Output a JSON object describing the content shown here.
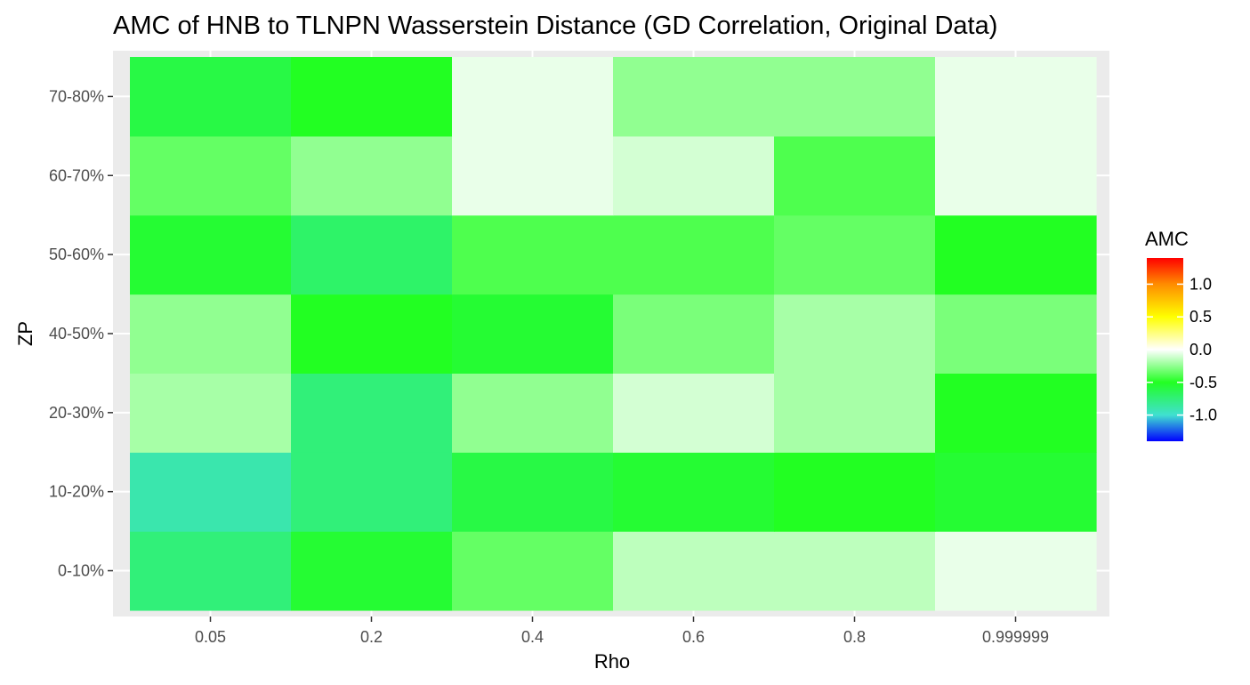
{
  "chart_data": {
    "type": "heatmap",
    "title": "AMC of HNB to TLNPN Wasserstein Distance (GD Correlation, Original Data)",
    "xlabel": "Rho",
    "ylabel": "ZP",
    "x_categories": [
      "0.05",
      "0.2",
      "0.4",
      "0.6",
      "0.8",
      "0.999999"
    ],
    "y_categories": [
      "0-10%",
      "10-20%",
      "20-30%",
      "40-50%",
      "50-60%",
      "60-70%",
      "70-80%"
    ],
    "values": [
      [
        -0.75,
        -0.55,
        -0.35,
        -0.15,
        -0.15,
        -0.05
      ],
      [
        -0.9,
        -0.75,
        -0.6,
        -0.55,
        -0.5,
        -0.55
      ],
      [
        -0.2,
        -0.75,
        -0.25,
        -0.1,
        -0.2,
        -0.5
      ],
      [
        -0.25,
        -0.5,
        -0.55,
        -0.3,
        -0.2,
        -0.3
      ],
      [
        -0.55,
        -0.7,
        -0.4,
        -0.4,
        -0.35,
        -0.5
      ],
      [
        -0.35,
        -0.25,
        -0.05,
        -0.1,
        -0.4,
        -0.05
      ],
      [
        -0.6,
        -0.5,
        -0.05,
        -0.25,
        -0.25,
        -0.05
      ]
    ],
    "legend": {
      "title": "AMC",
      "ticks": [
        1.0,
        0.5,
        0.0,
        -0.5,
        -1.0
      ],
      "tick_labels": [
        "1.0",
        "0.5",
        "0.0",
        "-0.5",
        "-1.0"
      ],
      "range": [
        -1.4,
        1.4
      ],
      "placement": "right",
      "colors": {
        "-1.4": "#0000ff",
        "-1.0": "#40e0d0",
        "-0.5": "#22ff22",
        "0.0": "#ffffff",
        "0.5": "#ffff00",
        "1.0": "#ff8c00",
        "1.4": "#ff0000"
      }
    },
    "panel_background": "#ebebeb",
    "gridlines": true
  }
}
